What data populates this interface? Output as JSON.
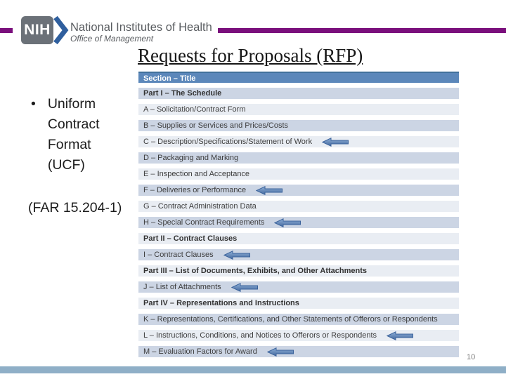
{
  "slide": {
    "logo": {
      "acronym": "NIH",
      "org_name": "National Institutes of Health",
      "sub_org": "Office of Management"
    },
    "title": "Requests for Proposals (RFP)",
    "bullet": {
      "marker": "•",
      "text": "Uniform Contract Format (UCF)"
    },
    "far_reference": "(FAR 15.204-1)",
    "table": {
      "header": "Section – Title",
      "rows": [
        {
          "label": "Part I – The Schedule",
          "part": true,
          "arrow": false
        },
        {
          "label": "A – Solicitation/Contract Form",
          "part": false,
          "arrow": false
        },
        {
          "label": "B – Supplies or Services and Prices/Costs",
          "part": false,
          "arrow": false
        },
        {
          "label": "C – Description/Specifications/Statement of Work",
          "part": false,
          "arrow": true
        },
        {
          "label": "D – Packaging and Marking",
          "part": false,
          "arrow": false
        },
        {
          "label": "E – Inspection and Acceptance",
          "part": false,
          "arrow": false
        },
        {
          "label": "F – Deliveries or Performance",
          "part": false,
          "arrow": true
        },
        {
          "label": "G – Contract Administration Data",
          "part": false,
          "arrow": false
        },
        {
          "label": "H – Special Contract Requirements",
          "part": false,
          "arrow": true
        },
        {
          "label": "Part II – Contract Clauses",
          "part": true,
          "arrow": false
        },
        {
          "label": "I – Contract Clauses",
          "part": false,
          "arrow": true
        },
        {
          "label": "Part III – List of Documents, Exhibits, and Other Attachments",
          "part": true,
          "arrow": false
        },
        {
          "label": "J – List of Attachments",
          "part": false,
          "arrow": true
        },
        {
          "label": "Part IV – Representations and Instructions",
          "part": true,
          "arrow": false
        },
        {
          "label": "K – Representations, Certifications, and Other Statements of Offerors or Respondents",
          "part": false,
          "arrow": false
        },
        {
          "label": "L – Instructions, Conditions, and Notices to Offerors or Respondents",
          "part": false,
          "arrow": true
        },
        {
          "label": "M – Evaluation Factors for Award",
          "part": false,
          "arrow": true
        }
      ]
    },
    "page_number": "10",
    "colors": {
      "accent_purple": "#7a0f7c",
      "table_header_blue": "#5b87ba",
      "row_shade_dark": "#ccd5e4",
      "row_shade_light": "#e9edf3",
      "arrow_blue": "#4f7ab0",
      "footer_bar_blue": "#8fafc7"
    }
  }
}
